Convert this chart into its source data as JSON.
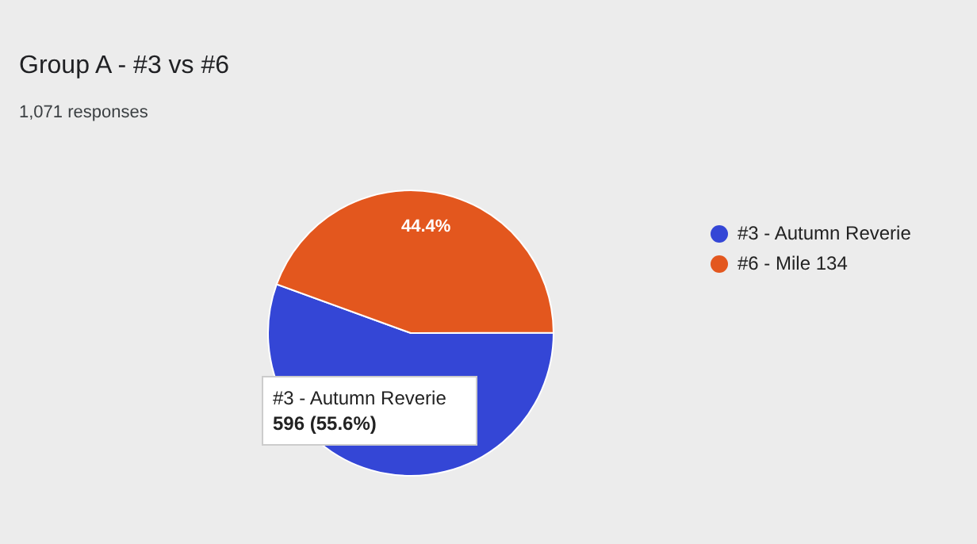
{
  "chart_data": {
    "type": "pie",
    "title": "Group A - #3 vs #6",
    "subtitle": "1,071 responses",
    "categories": [
      "#3 - Autumn Reverie",
      "#6 - Mile 134"
    ],
    "values": [
      55.6,
      44.4
    ],
    "colors": [
      "#3446d6",
      "#e3571e"
    ],
    "value_labels": [
      null,
      "44.4%"
    ],
    "legend": "right",
    "annotations": [
      "#3 - Autumn Reverie",
      "596 (55.6%)"
    ]
  }
}
